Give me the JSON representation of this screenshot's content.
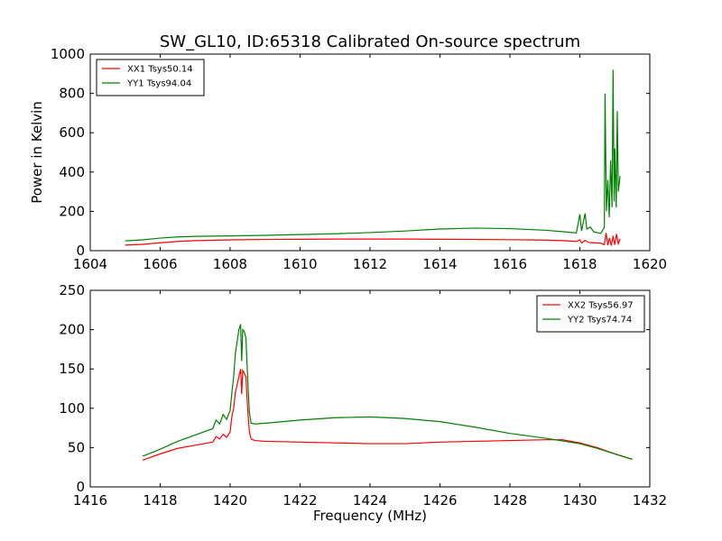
{
  "figure": {
    "title": "SW_GL10, ID:65318 Calibrated On-source spectrum"
  },
  "colors": {
    "xx": "#ff0000",
    "yy": "#008000",
    "axes": "#000000",
    "background": "#ffffff"
  },
  "chart_data": [
    {
      "type": "line",
      "title": "SW_GL10, ID:65318 Calibrated On-source spectrum",
      "xlabel": "",
      "ylabel": "Power in Kelvin",
      "xlim": [
        1604,
        1620
      ],
      "ylim": [
        0,
        1000
      ],
      "xticks": [
        1604,
        1606,
        1608,
        1610,
        1612,
        1614,
        1616,
        1618,
        1620
      ],
      "yticks": [
        0,
        200,
        400,
        600,
        800,
        1000
      ],
      "grid": false,
      "legend_position": "top-left",
      "series": [
        {
          "name": "XX1 Tsys50.14",
          "color": "#ff0000",
          "points": [
            [
              1605.0,
              28
            ],
            [
              1605.5,
              32
            ],
            [
              1606.0,
              40
            ],
            [
              1606.5,
              47
            ],
            [
              1607.0,
              51
            ],
            [
              1608.0,
              55
            ],
            [
              1609.0,
              57
            ],
            [
              1610.0,
              58
            ],
            [
              1611.0,
              59
            ],
            [
              1612.0,
              59
            ],
            [
              1613.0,
              59
            ],
            [
              1614.0,
              58
            ],
            [
              1615.0,
              57
            ],
            [
              1616.0,
              56
            ],
            [
              1617.0,
              54
            ],
            [
              1617.5,
              51
            ],
            [
              1617.9,
              47
            ],
            [
              1618.0,
              55
            ],
            [
              1618.05,
              40
            ],
            [
              1618.15,
              52
            ],
            [
              1618.25,
              42
            ],
            [
              1618.4,
              40
            ],
            [
              1618.6,
              38
            ],
            [
              1618.7,
              30
            ],
            [
              1618.75,
              90
            ],
            [
              1618.8,
              28
            ],
            [
              1618.85,
              65
            ],
            [
              1618.9,
              25
            ],
            [
              1618.95,
              75
            ],
            [
              1619.0,
              30
            ],
            [
              1619.05,
              85
            ],
            [
              1619.1,
              35
            ],
            [
              1619.15,
              60
            ]
          ]
        },
        {
          "name": "YY1 Tsys94.04",
          "color": "#008000",
          "points": [
            [
              1605.0,
              50
            ],
            [
              1605.5,
              55
            ],
            [
              1606.0,
              64
            ],
            [
              1606.5,
              70
            ],
            [
              1607.0,
              73
            ],
            [
              1608.0,
              75
            ],
            [
              1609.0,
              78
            ],
            [
              1610.0,
              82
            ],
            [
              1611.0,
              86
            ],
            [
              1612.0,
              92
            ],
            [
              1613.0,
              100
            ],
            [
              1614.0,
              110
            ],
            [
              1615.0,
              115
            ],
            [
              1616.0,
              112
            ],
            [
              1617.0,
              104
            ],
            [
              1617.5,
              97
            ],
            [
              1617.9,
              90
            ],
            [
              1618.0,
              185
            ],
            [
              1618.05,
              100
            ],
            [
              1618.15,
              190
            ],
            [
              1618.2,
              110
            ],
            [
              1618.3,
              120
            ],
            [
              1618.4,
              95
            ],
            [
              1618.6,
              88
            ],
            [
              1618.7,
              120
            ],
            [
              1618.72,
              800
            ],
            [
              1618.76,
              200
            ],
            [
              1618.8,
              360
            ],
            [
              1618.84,
              170
            ],
            [
              1618.88,
              460
            ],
            [
              1618.92,
              220
            ],
            [
              1618.95,
              920
            ],
            [
              1618.98,
              250
            ],
            [
              1619.0,
              520
            ],
            [
              1619.04,
              220
            ],
            [
              1619.07,
              710
            ],
            [
              1619.1,
              300
            ],
            [
              1619.15,
              380
            ]
          ]
        }
      ]
    },
    {
      "type": "line",
      "title": "",
      "xlabel": "Frequency (MHz)",
      "ylabel": "",
      "xlim": [
        1416,
        1432
      ],
      "ylim": [
        0,
        250
      ],
      "xticks": [
        1416,
        1418,
        1420,
        1422,
        1424,
        1426,
        1428,
        1430,
        1432
      ],
      "yticks": [
        0,
        50,
        100,
        150,
        200,
        250
      ],
      "grid": false,
      "legend_position": "top-right",
      "series": [
        {
          "name": "XX2 Tsys56.97",
          "color": "#ff0000",
          "points": [
            [
              1417.5,
              34
            ],
            [
              1418.0,
              42
            ],
            [
              1418.5,
              49
            ],
            [
              1419.0,
              53
            ],
            [
              1419.5,
              57
            ],
            [
              1419.6,
              64
            ],
            [
              1419.7,
              61
            ],
            [
              1419.8,
              67
            ],
            [
              1419.9,
              63
            ],
            [
              1420.0,
              70
            ],
            [
              1420.05,
              90
            ],
            [
              1420.1,
              100
            ],
            [
              1420.15,
              120
            ],
            [
              1420.2,
              130
            ],
            [
              1420.25,
              140
            ],
            [
              1420.3,
              150
            ],
            [
              1420.33,
              118
            ],
            [
              1420.36,
              148
            ],
            [
              1420.4,
              145
            ],
            [
              1420.45,
              140
            ],
            [
              1420.5,
              100
            ],
            [
              1420.55,
              70
            ],
            [
              1420.6,
              61
            ],
            [
              1420.7,
              59
            ],
            [
              1421.0,
              58
            ],
            [
              1422.0,
              57
            ],
            [
              1423.0,
              56
            ],
            [
              1424.0,
              55
            ],
            [
              1425.0,
              55
            ],
            [
              1426.0,
              57
            ],
            [
              1427.0,
              58
            ],
            [
              1428.0,
              59
            ],
            [
              1429.0,
              60
            ],
            [
              1429.5,
              60
            ],
            [
              1430.0,
              56
            ],
            [
              1430.5,
              50
            ],
            [
              1431.0,
              42
            ],
            [
              1431.5,
              35
            ]
          ]
        },
        {
          "name": "YY2 Tsys74.74",
          "color": "#008000",
          "points": [
            [
              1417.5,
              39
            ],
            [
              1418.0,
              48
            ],
            [
              1418.5,
              58
            ],
            [
              1419.0,
              66
            ],
            [
              1419.5,
              74
            ],
            [
              1419.6,
              85
            ],
            [
              1419.7,
              80
            ],
            [
              1419.8,
              92
            ],
            [
              1419.9,
              86
            ],
            [
              1420.0,
              97
            ],
            [
              1420.05,
              120
            ],
            [
              1420.1,
              140
            ],
            [
              1420.15,
              170
            ],
            [
              1420.2,
              185
            ],
            [
              1420.25,
              200
            ],
            [
              1420.3,
              207
            ],
            [
              1420.33,
              160
            ],
            [
              1420.36,
              200
            ],
            [
              1420.4,
              198
            ],
            [
              1420.45,
              190
            ],
            [
              1420.5,
              140
            ],
            [
              1420.55,
              95
            ],
            [
              1420.6,
              81
            ],
            [
              1420.7,
              80
            ],
            [
              1421.0,
              81
            ],
            [
              1422.0,
              85
            ],
            [
              1423.0,
              88
            ],
            [
              1424.0,
              89
            ],
            [
              1425.0,
              87
            ],
            [
              1426.0,
              83
            ],
            [
              1427.0,
              76
            ],
            [
              1428.0,
              68
            ],
            [
              1429.0,
              62
            ],
            [
              1430.0,
              55
            ],
            [
              1430.5,
              49
            ],
            [
              1431.0,
              42
            ],
            [
              1431.5,
              35
            ]
          ]
        }
      ]
    }
  ]
}
